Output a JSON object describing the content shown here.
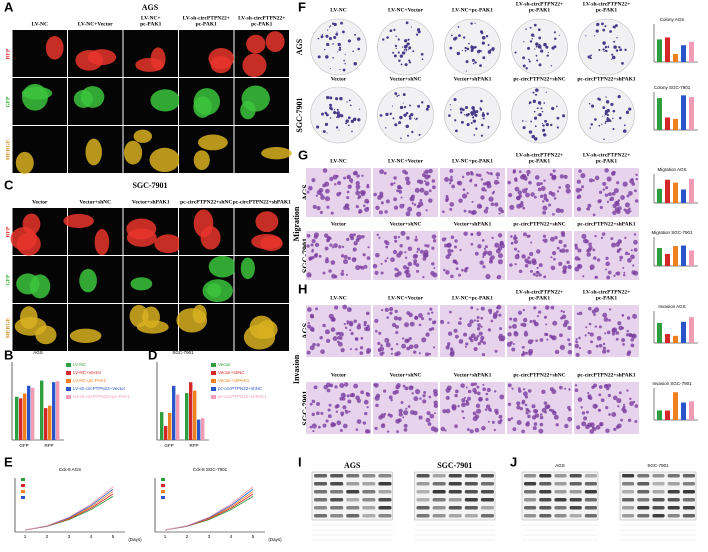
{
  "panels": {
    "A": {
      "label": "A",
      "title": "AGS",
      "columns": [
        [
          "LV-NC"
        ],
        [
          "LV-NC+Vector"
        ],
        [
          "LV-NC+",
          "pc-PAK1"
        ],
        [
          "LV-sh-circPTPN22+",
          "pc-PAK1"
        ],
        [
          "LV-sh-circPTPN22+",
          "pc-PAK1"
        ]
      ],
      "rows": [
        "RFP",
        "GFP",
        "MERGE"
      ]
    },
    "C": {
      "label": "C",
      "title": "SGC-7901",
      "columns": [
        [
          "Vector"
        ],
        [
          "Vector+shNC"
        ],
        [
          "Vector+shPAK1"
        ],
        [
          "pc-circPTPN22+shNC"
        ],
        [
          "pc-circPTPN22+shPAK1"
        ]
      ],
      "rows": [
        "RFP",
        "GFP",
        "MERGE"
      ]
    },
    "B": {
      "label": "B",
      "title": "AGS",
      "legend": [
        "LV-NC",
        "LV-NC+Vector",
        "LV-NC+pc-PAK1",
        "LV-sh-circPTPN22+Vector",
        "LV-sh-circPTPN22+pc-PAK1"
      ],
      "legend_colors": [
        "#2e9e3e",
        "#d62728",
        "#f07f1e",
        "#2a55c8",
        "#f29bb5"
      ],
      "x_labels": [
        "GFP",
        "RFP"
      ]
    },
    "D": {
      "label": "D",
      "title": "SGC-7901",
      "legend": [
        "Vector",
        "Vector+shNC",
        "Vector+shPAK1",
        "pc-circPTPN22+shNC",
        "pc-circPTPN22+shPAK1"
      ],
      "legend_colors": [
        "#2e9e3e",
        "#d62728",
        "#f07f1e",
        "#2a55c8",
        "#f29bb5"
      ],
      "x_labels": [
        "GFP",
        "RFP"
      ]
    },
    "E": {
      "label": "E",
      "titles": [
        "Cck-8 AGS",
        "Cck-8 SGC-7901"
      ],
      "x_label": "(Days)",
      "x_ticks": [
        1,
        2,
        3,
        4,
        5
      ]
    },
    "F": {
      "label": "F",
      "rows": [
        "AGS",
        "SGC-7901"
      ],
      "columns_top": [
        [
          "LV-NC"
        ],
        [
          "LV-NC+Vector"
        ],
        [
          "LV-NC+pc-PAK1"
        ],
        [
          "LV-sh-circPTPN22+",
          "pc-PAK1"
        ],
        [
          "LV-sh-circPTPN22+",
          "pc-PAK1"
        ]
      ],
      "columns_bottom": [
        [
          "Vector"
        ],
        [
          "Vector+shNC"
        ],
        [
          "Vector+shPAK1"
        ],
        [
          "pc-circPTPN22+shNC"
        ],
        [
          "pc-circPTPN22+shPAK1"
        ]
      ],
      "chart_titles": [
        "Colony AGS",
        "Colony SGC-7901"
      ]
    },
    "G": {
      "label": "G",
      "side": "Migration",
      "rows": [
        "AGS",
        "SGC-7901"
      ],
      "columns_top": [
        [
          "LV-NC"
        ],
        [
          "LV-NC+Vector"
        ],
        [
          "LV-NC+pc-PAK1"
        ],
        [
          "LV-sh-circPTPN22+",
          "pc-PAK1"
        ],
        [
          "LV-sh-circPTPN22+",
          "pc-PAK1"
        ]
      ],
      "columns_bottom": [
        [
          "Vector"
        ],
        [
          "Vector+shNC"
        ],
        [
          "Vector+shPAK1"
        ],
        [
          "pc-circPTPN22+shNC"
        ],
        [
          "pc-circPTPN22+shPAK1"
        ]
      ],
      "chart_titles": [
        "Migration AGS",
        "Migration SGC-7901"
      ]
    },
    "H": {
      "label": "H",
      "side": "Invasion",
      "rows": [
        "AGS",
        "SGC-7901"
      ],
      "columns_top": [
        [
          "LV-NC"
        ],
        [
          "LV-NC+Vector"
        ],
        [
          "LV-NC+pc-PAK1"
        ],
        [
          "LV-sh-circPTPN22+",
          "pc-PAK1"
        ],
        [
          "LV-sh-circPTPN22+",
          "pc-PAK1"
        ]
      ],
      "columns_bottom": [
        [
          "Vector"
        ],
        [
          "Vector+shNC"
        ],
        [
          "Vector+shPAK1"
        ],
        [
          "pc-circPTPN22+shNC"
        ],
        [
          "pc-circPTPN22+shPAK1"
        ]
      ],
      "chart_titles": [
        "Invasion AGS",
        "Invasion SGC-7901"
      ]
    },
    "I": {
      "label": "I",
      "titles": [
        "AGS",
        "SGC-7901"
      ]
    },
    "J": {
      "label": "J",
      "titles": [
        "AGS",
        "SGC-7901"
      ]
    }
  }
}
